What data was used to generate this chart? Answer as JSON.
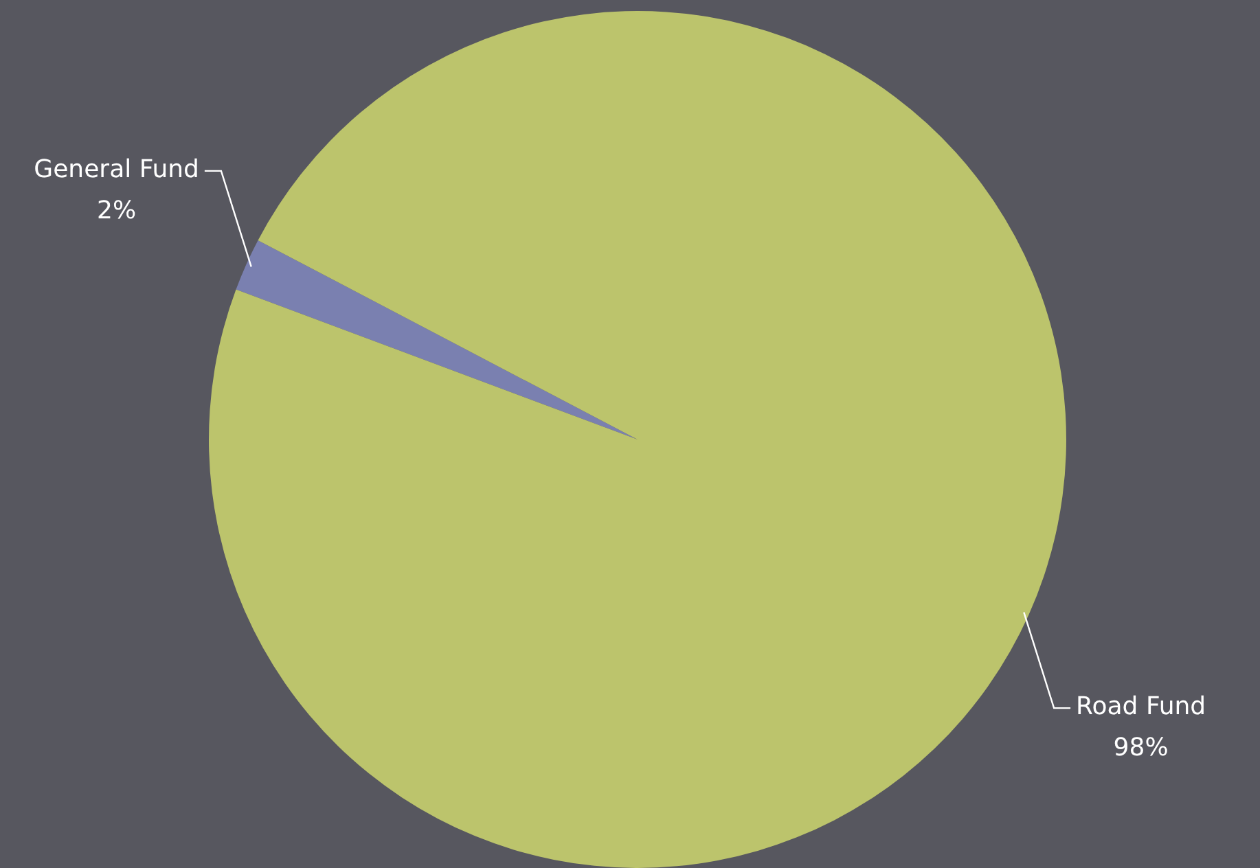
{
  "chart_data": {
    "type": "pie",
    "categories": [
      "General Fund",
      "Road Fund"
    ],
    "values": [
      2,
      98
    ],
    "colors": [
      "#7a80b0",
      "#bcc46c"
    ],
    "value_labels": [
      "2%",
      "98%"
    ],
    "legend": false
  }
}
